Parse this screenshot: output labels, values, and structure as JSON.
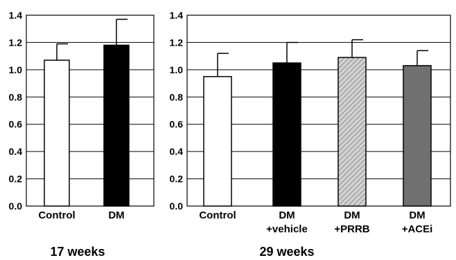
{
  "chart_data": [
    {
      "type": "bar",
      "title": "17 weeks",
      "categories": [
        [
          "Control"
        ],
        [
          "DM"
        ]
      ],
      "values": [
        1.07,
        1.18
      ],
      "errors": [
        0.12,
        0.19
      ],
      "fills": [
        "white",
        "black"
      ],
      "ylim": [
        0,
        1.4
      ],
      "yticks": [
        "0.0",
        "0.2",
        "0.4",
        "0.6",
        "0.8",
        "1.0",
        "1.2",
        "1.4"
      ],
      "grid": true,
      "legend": "none"
    },
    {
      "type": "bar",
      "title": "29 weeks",
      "categories": [
        [
          "Control"
        ],
        [
          "DM",
          "+vehicle"
        ],
        [
          "DM",
          "+PRRB"
        ],
        [
          "DM",
          "+ACEi"
        ]
      ],
      "values": [
        0.95,
        1.05,
        1.09,
        1.03
      ],
      "errors": [
        0.17,
        0.15,
        0.13,
        0.11
      ],
      "fills": [
        "white",
        "black",
        "hatched",
        "gray"
      ],
      "ylim": [
        0,
        1.4
      ],
      "yticks": [
        "0.0",
        "0.2",
        "0.4",
        "0.6",
        "0.8",
        "1.0",
        "1.2",
        "1.4"
      ],
      "grid": true,
      "legend": "none"
    }
  ]
}
